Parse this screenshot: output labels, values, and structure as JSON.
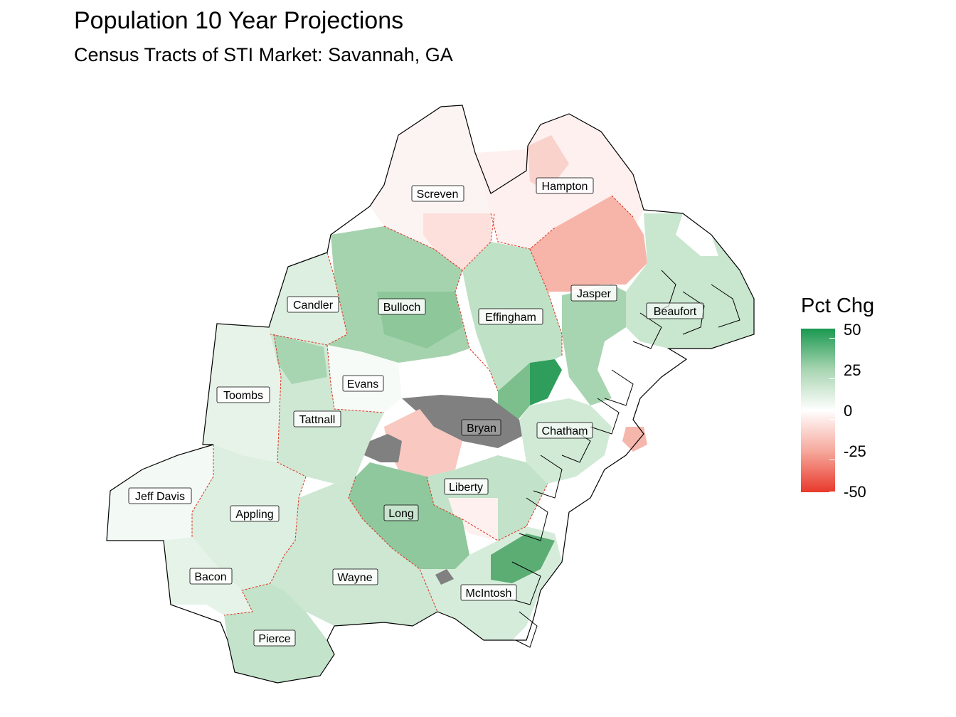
{
  "title": "Population 10 Year Projections",
  "subtitle": "Census Tracts of STI Market: Savannah, GA",
  "legend": {
    "title": "Pct Chg",
    "ticks": [
      "50",
      "25",
      "0",
      "-25",
      "-50"
    ],
    "colors": {
      "high": "#1a9850",
      "mid": "#ffffff",
      "low": "#e8392b",
      "missing": "#808080"
    }
  },
  "counties": [
    {
      "name": "Screven"
    },
    {
      "name": "Hampton"
    },
    {
      "name": "Candler"
    },
    {
      "name": "Bulloch"
    },
    {
      "name": "Effingham"
    },
    {
      "name": "Jasper"
    },
    {
      "name": "Beaufort"
    },
    {
      "name": "Toombs"
    },
    {
      "name": "Evans"
    },
    {
      "name": "Tattnall"
    },
    {
      "name": "Bryan"
    },
    {
      "name": "Chatham"
    },
    {
      "name": "Jeff Davis"
    },
    {
      "name": "Appling"
    },
    {
      "name": "Liberty"
    },
    {
      "name": "Long"
    },
    {
      "name": "Bacon"
    },
    {
      "name": "Wayne"
    },
    {
      "name": "McIntosh"
    },
    {
      "name": "Pierce"
    }
  ]
}
